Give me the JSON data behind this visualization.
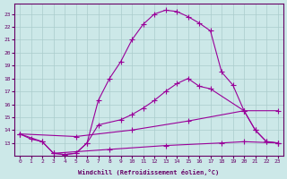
{
  "bg_color": "#cce8e8",
  "grid_color": "#aacccc",
  "line_color": "#990099",
  "xlabel": "Windchill (Refroidissement éolien,°C)",
  "xlim": [
    -0.5,
    23.5
  ],
  "ylim": [
    12,
    23.8
  ],
  "yticks": [
    13,
    14,
    15,
    16,
    17,
    18,
    19,
    20,
    21,
    22,
    23
  ],
  "xticks": [
    0,
    1,
    2,
    3,
    4,
    5,
    6,
    7,
    8,
    9,
    10,
    11,
    12,
    13,
    14,
    15,
    16,
    17,
    18,
    19,
    20,
    21,
    22,
    23
  ],
  "curve1_x": [
    0,
    1,
    2,
    3,
    4,
    5,
    6,
    7,
    8,
    9,
    10,
    11,
    12,
    13,
    14,
    15,
    16,
    17,
    18,
    19,
    20,
    21,
    22,
    23
  ],
  "curve1_y": [
    13.7,
    13.3,
    13.1,
    12.2,
    12.1,
    12.2,
    13.0,
    16.3,
    18.0,
    19.3,
    21.0,
    22.2,
    23.0,
    23.3,
    23.2,
    22.8,
    22.3,
    21.7,
    18.5,
    17.5,
    15.5,
    14.0,
    13.1,
    13.0
  ],
  "curve2_x": [
    0,
    2,
    3,
    4,
    5,
    6,
    7,
    9,
    10,
    11,
    12,
    13,
    14,
    15,
    16,
    17,
    20,
    21,
    22,
    23
  ],
  "curve2_y": [
    13.7,
    13.1,
    12.2,
    12.1,
    12.2,
    13.0,
    14.4,
    14.8,
    15.2,
    15.7,
    16.3,
    17.0,
    17.6,
    18.0,
    17.4,
    17.2,
    15.5,
    14.0,
    13.1,
    13.0
  ],
  "line1_x": [
    0,
    5,
    10,
    15,
    20,
    23
  ],
  "line1_y": [
    13.7,
    13.5,
    14.0,
    14.7,
    15.5,
    15.5
  ],
  "line2_x": [
    3,
    8,
    13,
    18,
    20,
    23
  ],
  "line2_y": [
    12.2,
    12.5,
    12.8,
    13.0,
    13.1,
    13.0
  ]
}
